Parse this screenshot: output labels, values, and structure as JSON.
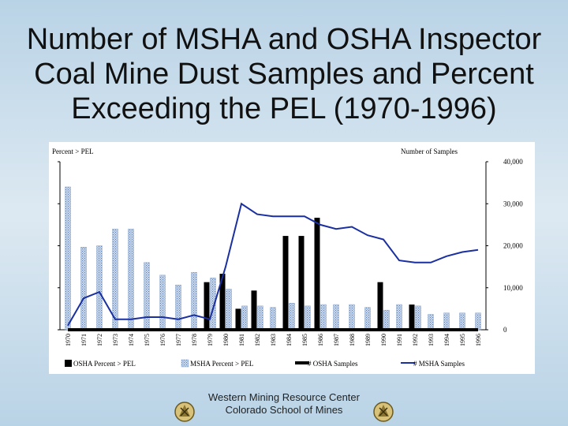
{
  "slide": {
    "title_lines": [
      "Number of MSHA and OSHA Inspector",
      "Coal Mine Dust Samples and Percent",
      "Exceeding the PEL (1970-1996)"
    ],
    "footer_lines": [
      "Western Mining Resource Center",
      "Colorado School of Mines"
    ],
    "logo_icon": "mining-seal-icon"
  },
  "chart_data": {
    "type": "bar",
    "title": "",
    "left_axis_label": "Percent > PEL",
    "right_axis_label": "Number of Samples",
    "ylim_left": [
      0,
      60
    ],
    "ylim_right": [
      0,
      40000
    ],
    "left_ticks": [
      "0",
      "15",
      "30",
      "45",
      "60"
    ],
    "right_ticks": [
      "0",
      "10,000",
      "20,000",
      "30,000",
      "40,000"
    ],
    "grid": false,
    "legend_position": "bottom",
    "categories": [
      "1970",
      "1971",
      "1972",
      "1973",
      "1974",
      "1975",
      "1976",
      "1977",
      "1978",
      "1979",
      "1980",
      "1981",
      "1982",
      "1983",
      "1984",
      "1985",
      "1986",
      "1987",
      "1988",
      "1989",
      "1990",
      "1991",
      "1992",
      "1993",
      "1994",
      "1995",
      "1996"
    ],
    "series": [
      {
        "name": "OSHA Percent > PEL",
        "kind": "bar",
        "axis": "left",
        "color": "#000000",
        "values": [
          null,
          null,
          null,
          null,
          null,
          null,
          null,
          null,
          null,
          17,
          20,
          7.5,
          14,
          null,
          33.5,
          33.5,
          40,
          null,
          null,
          null,
          17,
          null,
          9,
          null,
          null,
          null,
          null
        ]
      },
      {
        "name": "MSHA Percent > PEL",
        "kind": "bar",
        "axis": "left",
        "color": "#9fb8d8",
        "values": [
          51,
          29.5,
          30,
          36,
          36,
          24,
          19.5,
          16,
          20.5,
          18.5,
          14.5,
          8.5,
          8.5,
          8,
          9.5,
          8.5,
          9,
          9,
          9,
          8,
          7,
          9,
          8.5,
          5.5,
          6,
          6,
          6
        ]
      },
      {
        "name": "# OSHA Samples",
        "kind": "line",
        "axis": "right",
        "color": "#000000",
        "values": [
          0,
          0,
          0,
          0,
          0,
          0,
          0,
          0,
          0,
          0,
          0,
          0,
          0,
          0,
          0,
          0,
          0,
          0,
          0,
          0,
          0,
          0,
          0,
          0,
          0,
          0,
          0
        ]
      },
      {
        "name": "# MSHA Samples",
        "kind": "line",
        "axis": "right",
        "color": "#1a2fa0",
        "values": [
          1000,
          7500,
          9000,
          2500,
          2500,
          3000,
          3000,
          2500,
          3500,
          2500,
          15000,
          30000,
          27500,
          27000,
          27000,
          27000,
          25000,
          24000,
          24500,
          22500,
          21500,
          16500,
          16000,
          16000,
          17500,
          18500,
          19000
        ]
      }
    ]
  }
}
